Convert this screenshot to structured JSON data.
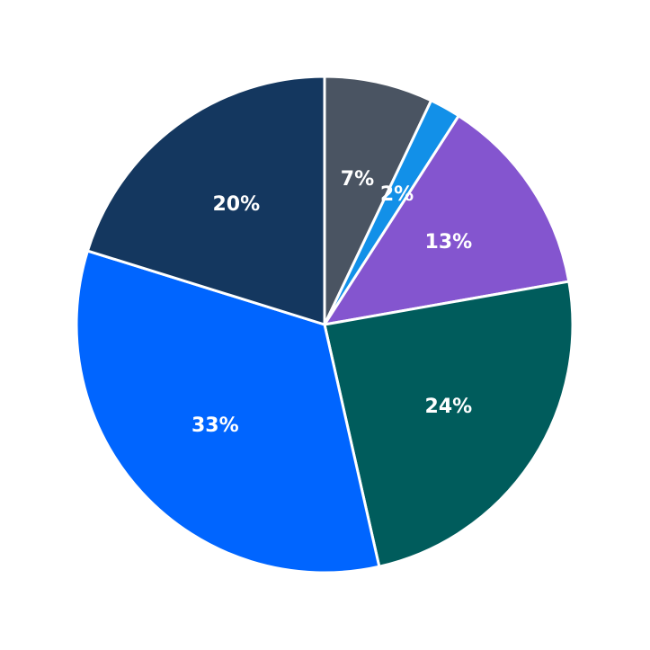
{
  "chart_data": {
    "type": "pie",
    "title": "",
    "legend": "none",
    "start": "top",
    "direction": "clockwise",
    "slices": [
      {
        "label": "7%",
        "value": 7,
        "color": "#4a5462"
      },
      {
        "label": "2%",
        "value": 2,
        "color": "#1290e8"
      },
      {
        "label": "13%",
        "value": 13,
        "color": "#8455cf"
      },
      {
        "label": "24%",
        "value": 24,
        "color": "#005c5c"
      },
      {
        "label": "33%",
        "value": 33,
        "color": "#0065ff"
      },
      {
        "label": "20%",
        "value": 20,
        "color": "#14375f"
      }
    ]
  }
}
